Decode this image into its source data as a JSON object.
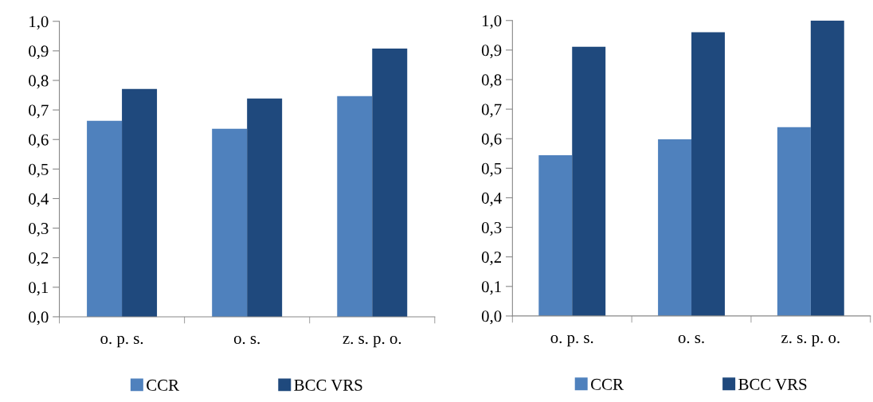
{
  "chart_data": [
    {
      "type": "bar",
      "categories": [
        "o. p. s.",
        "o. s.",
        "z. s. p. o."
      ],
      "series": [
        {
          "name": "CCR",
          "color": "#4f81bd",
          "values": [
            0.663,
            0.636,
            0.747
          ]
        },
        {
          "name": "BCC VRS",
          "color": "#1f497d",
          "values": [
            0.771,
            0.739,
            0.908
          ]
        }
      ],
      "ylim": [
        0,
        1
      ],
      "yticks": [
        {
          "value": 0,
          "label": "0,0"
        },
        {
          "value": 0.1,
          "label": "0,1"
        },
        {
          "value": 0.2,
          "label": "0,2"
        },
        {
          "value": 0.3,
          "label": "0,3"
        },
        {
          "value": 0.4,
          "label": "0,4"
        },
        {
          "value": 0.5,
          "label": "0,5"
        },
        {
          "value": 0.6,
          "label": "0,6"
        },
        {
          "value": 0.7,
          "label": "0,7"
        },
        {
          "value": 0.8,
          "label": "0,8"
        },
        {
          "value": 0.9,
          "label": "0,9"
        },
        {
          "value": 1,
          "label": "1,0"
        }
      ],
      "grid": false,
      "legend": "bottom"
    },
    {
      "type": "bar",
      "categories": [
        "o. p. s.",
        "o. s.",
        "z. s. p. o."
      ],
      "series": [
        {
          "name": "CCR",
          "color": "#4f81bd",
          "values": [
            0.544,
            0.598,
            0.639
          ]
        },
        {
          "name": "BCC VRS",
          "color": "#1f497d",
          "values": [
            0.911,
            0.96,
            1.0
          ]
        }
      ],
      "ylim": [
        0,
        1
      ],
      "yticks": [
        {
          "value": 0,
          "label": "0,0"
        },
        {
          "value": 0.1,
          "label": "0,1"
        },
        {
          "value": 0.2,
          "label": "0,2"
        },
        {
          "value": 0.3,
          "label": "0,3"
        },
        {
          "value": 0.4,
          "label": "0,4"
        },
        {
          "value": 0.5,
          "label": "0,5"
        },
        {
          "value": 0.6,
          "label": "0,6"
        },
        {
          "value": 0.7,
          "label": "0,7"
        },
        {
          "value": 0.8,
          "label": "0,8"
        },
        {
          "value": 0.9,
          "label": "0,9"
        },
        {
          "value": 1,
          "label": "1,0"
        }
      ],
      "grid": false,
      "legend": "bottom"
    }
  ]
}
